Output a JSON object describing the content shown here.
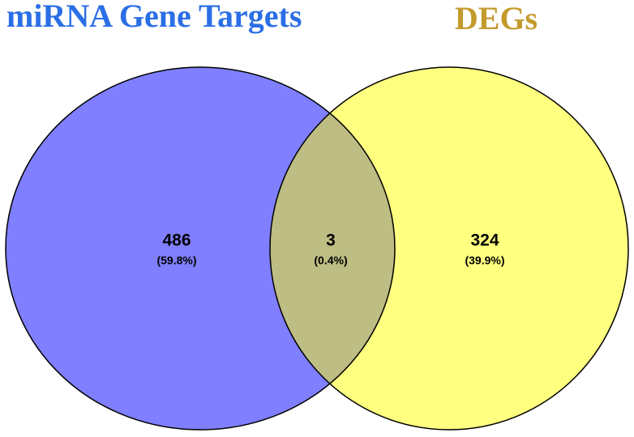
{
  "chart_data": {
    "type": "venn",
    "sets": [
      {
        "name": "miRNA Gene Targets",
        "color": "#7f7fff",
        "title_color": "#2b6fe6"
      },
      {
        "name": "DEGs",
        "color": "#ffff80",
        "title_color": "#c49a2c"
      }
    ],
    "overlap_color": "#bdbd84",
    "regions": [
      "miRNA Gene Targets only",
      "both",
      "DEGs only"
    ],
    "values": [
      486,
      3,
      324
    ],
    "value_labels": [
      "(59.8%)",
      "(0.4%)",
      "(39.9%)"
    ]
  }
}
